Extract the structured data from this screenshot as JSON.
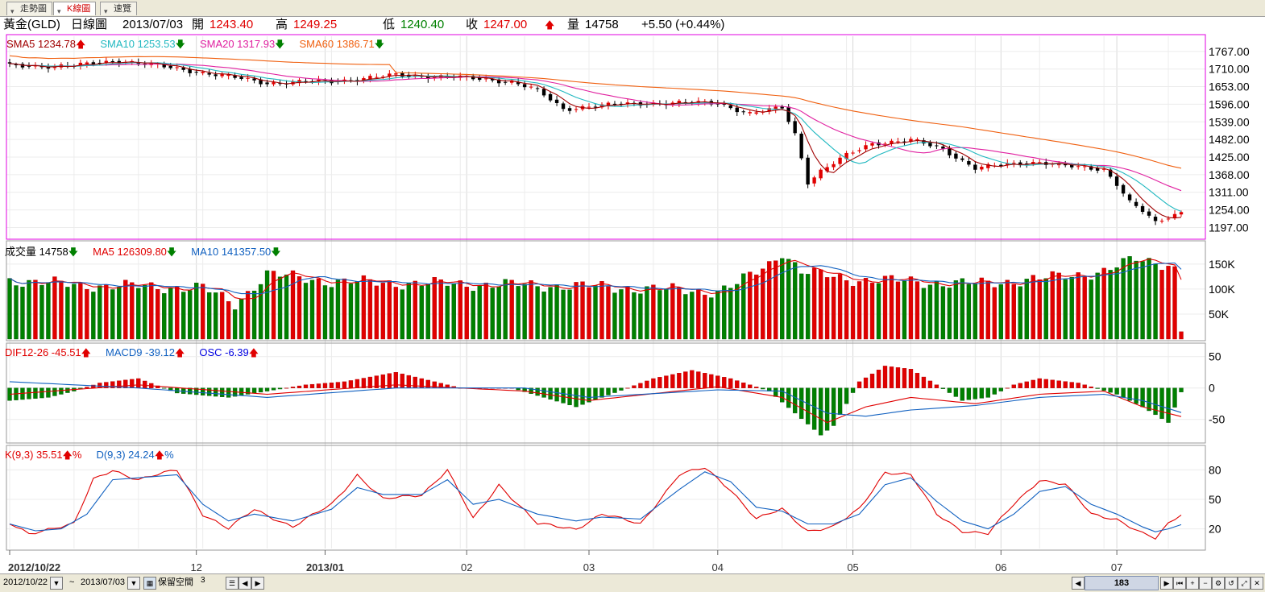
{
  "tabs": [
    {
      "label": "走勢圖",
      "active": false
    },
    {
      "label": "K線圖",
      "active": true
    },
    {
      "label": "速覽",
      "active": false
    }
  ],
  "header": {
    "symbol": "黃金(GLD)",
    "chart_kind": "日線圖",
    "date": "2013/07/03",
    "open_label": "開",
    "open": "1243.40",
    "high_label": "高",
    "high": "1249.25",
    "low_label": "低",
    "low": "1240.40",
    "close_label": "收",
    "close": "1247.00",
    "close_arrow": "🡅",
    "volume_label": "量",
    "volume": "14758",
    "change": "+5.50 (+0.44%)"
  },
  "legends": {
    "price": [
      {
        "text": "SMA5 1234.78",
        "arrow": "🡅",
        "color": "#a00000",
        "arrow_color": "#e00000"
      },
      {
        "text": "SMA10 1253.53",
        "arrow": "🡇",
        "color": "#20b8c0",
        "arrow_color": "#008000"
      },
      {
        "text": "SMA20 1317.93",
        "arrow": "🡇",
        "color": "#e020a0",
        "arrow_color": "#008000"
      },
      {
        "text": "SMA60 1386.71",
        "arrow": "🡇",
        "color": "#f06010",
        "arrow_color": "#008000"
      }
    ],
    "volume": [
      {
        "text": "成交量 14758",
        "arrow": "🡇",
        "color": "#000000",
        "arrow_color": "#008000"
      },
      {
        "text": "MA5 126309.80",
        "arrow": "🡇",
        "color": "#e00000",
        "arrow_color": "#008000"
      },
      {
        "text": "MA10 141357.50",
        "arrow": "🡇",
        "color": "#1060c0",
        "arrow_color": "#008000"
      }
    ],
    "macd": [
      {
        "text": "DIF12-26 -45.51",
        "arrow": "🡅",
        "color": "#e00000",
        "arrow_color": "#e00000"
      },
      {
        "text": "MACD9 -39.12",
        "arrow": "🡅",
        "color": "#1060c0",
        "arrow_color": "#e00000"
      },
      {
        "text": "OSC -6.39",
        "arrow": "🡅",
        "color": "#0000e0",
        "arrow_color": "#e00000"
      }
    ],
    "kd": [
      {
        "text": "K(9,3) 35.51",
        "arrow": "🡅",
        "suffix": "%",
        "color": "#e00000",
        "arrow_color": "#e00000"
      },
      {
        "text": "D(9,3) 24.24",
        "arrow": "🡅",
        "suffix": "%",
        "color": "#1060c0",
        "arrow_color": "#e00000"
      }
    ]
  },
  "colors": {
    "up": "#e00000",
    "down": "#008000",
    "price_frame": "#e000e0",
    "grid": "#d8d8d8",
    "candle_down": "#000000"
  },
  "chart_data": [
    {
      "type": "candlestick",
      "title": "黃金(GLD) 日線圖",
      "y_ticks": [
        "1767.00",
        "1710.00",
        "1653.00",
        "1596.00",
        "1539.00",
        "1482.00",
        "1425.00",
        "1368.00",
        "1311.00",
        "1254.00",
        "1197.00"
      ],
      "ylim": [
        1180,
        1790
      ],
      "x_labels": [
        "2012/10/22",
        "12",
        "2013/01",
        "02",
        "03",
        "04",
        "05",
        "06",
        "07"
      ],
      "x_label_index": [
        0,
        29,
        49,
        71,
        90,
        110,
        131,
        154,
        172
      ],
      "count": 183,
      "key_closes": [
        [
          0,
          1720
        ],
        [
          10,
          1720
        ],
        [
          17,
          1738
        ],
        [
          28,
          1705
        ],
        [
          40,
          1665
        ],
        [
          50,
          1670
        ],
        [
          60,
          1690
        ],
        [
          68,
          1685
        ],
        [
          78,
          1670
        ],
        [
          82,
          1640
        ],
        [
          86,
          1580
        ],
        [
          90,
          1590
        ],
        [
          100,
          1600
        ],
        [
          110,
          1600
        ],
        [
          115,
          1565
        ],
        [
          120,
          1585
        ],
        [
          122,
          1500
        ],
        [
          124,
          1345
        ],
        [
          126,
          1380
        ],
        [
          130,
          1430
        ],
        [
          134,
          1470
        ],
        [
          140,
          1480
        ],
        [
          145,
          1450
        ],
        [
          150,
          1390
        ],
        [
          155,
          1400
        ],
        [
          160,
          1410
        ],
        [
          166,
          1390
        ],
        [
          170,
          1385
        ],
        [
          172,
          1340
        ],
        [
          174,
          1280
        ],
        [
          176,
          1250
        ],
        [
          178,
          1210
        ],
        [
          180,
          1230
        ],
        [
          182,
          1247
        ]
      ],
      "sma_final": {
        "SMA5": 1234.78,
        "SMA10": 1253.53,
        "SMA20": 1317.93,
        "SMA60": 1386.71
      }
    },
    {
      "type": "bar",
      "title": "成交量",
      "y_ticks": [
        "150K",
        "100K",
        "50K"
      ],
      "ylim": [
        0,
        190000
      ],
      "key_values": [
        [
          0,
          118000
        ],
        [
          10,
          108000
        ],
        [
          20,
          105000
        ],
        [
          30,
          102000
        ],
        [
          35,
          70000
        ],
        [
          40,
          130000
        ],
        [
          50,
          115000
        ],
        [
          60,
          112000
        ],
        [
          70,
          110000
        ],
        [
          80,
          108000
        ],
        [
          90,
          105000
        ],
        [
          100,
          100000
        ],
        [
          110,
          95000
        ],
        [
          113,
          110000
        ],
        [
          118,
          150000
        ],
        [
          120,
          175000
        ],
        [
          123,
          135000
        ],
        [
          130,
          120000
        ],
        [
          140,
          115000
        ],
        [
          145,
          112000
        ],
        [
          150,
          110000
        ],
        [
          160,
          120000
        ],
        [
          170,
          135000
        ],
        [
          175,
          160000
        ],
        [
          180,
          150000
        ],
        [
          181,
          140000
        ],
        [
          182,
          14758
        ]
      ],
      "ma_final": {
        "MA5": 126309.8,
        "MA10": 141357.5
      }
    },
    {
      "type": "bar",
      "title": "MACD",
      "y_ticks": [
        "50",
        "0",
        "-50"
      ],
      "ylim": [
        -85,
        65
      ],
      "osc_key": [
        [
          0,
          -20
        ],
        [
          6,
          -15
        ],
        [
          10,
          -5
        ],
        [
          14,
          8
        ],
        [
          20,
          15
        ],
        [
          26,
          -8
        ],
        [
          34,
          -15
        ],
        [
          40,
          -5
        ],
        [
          46,
          5
        ],
        [
          52,
          10
        ],
        [
          60,
          25
        ],
        [
          64,
          15
        ],
        [
          70,
          0
        ],
        [
          78,
          0
        ],
        [
          82,
          -12
        ],
        [
          88,
          -30
        ],
        [
          92,
          -15
        ],
        [
          100,
          15
        ],
        [
          106,
          28
        ],
        [
          112,
          15
        ],
        [
          118,
          -5
        ],
        [
          122,
          -40
        ],
        [
          126,
          -75
        ],
        [
          128,
          -60
        ],
        [
          132,
          10
        ],
        [
          136,
          35
        ],
        [
          140,
          30
        ],
        [
          144,
          5
        ],
        [
          148,
          -20
        ],
        [
          152,
          -15
        ],
        [
          156,
          5
        ],
        [
          160,
          15
        ],
        [
          166,
          8
        ],
        [
          172,
          -10
        ],
        [
          176,
          -30
        ],
        [
          180,
          -55
        ],
        [
          182,
          -6.39
        ]
      ],
      "dif_key": [
        [
          0,
          -10
        ],
        [
          20,
          5
        ],
        [
          40,
          -10
        ],
        [
          60,
          5
        ],
        [
          80,
          -5
        ],
        [
          90,
          -20
        ],
        [
          110,
          2
        ],
        [
          120,
          -15
        ],
        [
          127,
          -55
        ],
        [
          133,
          -30
        ],
        [
          140,
          -15
        ],
        [
          150,
          -25
        ],
        [
          160,
          -10
        ],
        [
          170,
          -5
        ],
        [
          176,
          -30
        ],
        [
          182,
          -45.51
        ]
      ],
      "macd_key": [
        [
          0,
          10
        ],
        [
          20,
          0
        ],
        [
          40,
          -15
        ],
        [
          60,
          0
        ],
        [
          80,
          0
        ],
        [
          90,
          -15
        ],
        [
          110,
          -3
        ],
        [
          120,
          -5
        ],
        [
          127,
          -40
        ],
        [
          133,
          -45
        ],
        [
          140,
          -35
        ],
        [
          150,
          -28
        ],
        [
          160,
          -15
        ],
        [
          170,
          -10
        ],
        [
          176,
          -20
        ],
        [
          182,
          -39.12
        ]
      ]
    },
    {
      "type": "line",
      "title": "KD",
      "y_ticks": [
        "80",
        "50",
        "20"
      ],
      "ylim": [
        0,
        100
      ],
      "k_key": [
        [
          0,
          25
        ],
        [
          3,
          15
        ],
        [
          6,
          20
        ],
        [
          10,
          25
        ],
        [
          13,
          70
        ],
        [
          16,
          80
        ],
        [
          20,
          70
        ],
        [
          26,
          80
        ],
        [
          30,
          35
        ],
        [
          34,
          20
        ],
        [
          38,
          40
        ],
        [
          44,
          22
        ],
        [
          50,
          45
        ],
        [
          54,
          75
        ],
        [
          58,
          50
        ],
        [
          64,
          55
        ],
        [
          68,
          80
        ],
        [
          72,
          30
        ],
        [
          76,
          65
        ],
        [
          82,
          25
        ],
        [
          88,
          20
        ],
        [
          92,
          35
        ],
        [
          98,
          25
        ],
        [
          104,
          75
        ],
        [
          108,
          82
        ],
        [
          112,
          60
        ],
        [
          116,
          30
        ],
        [
          120,
          40
        ],
        [
          124,
          18
        ],
        [
          128,
          22
        ],
        [
          132,
          40
        ],
        [
          136,
          78
        ],
        [
          140,
          75
        ],
        [
          144,
          35
        ],
        [
          148,
          18
        ],
        [
          152,
          15
        ],
        [
          156,
          45
        ],
        [
          160,
          70
        ],
        [
          164,
          65
        ],
        [
          168,
          35
        ],
        [
          172,
          30
        ],
        [
          176,
          15
        ],
        [
          178,
          10
        ],
        [
          180,
          25
        ],
        [
          182,
          35.51
        ]
      ],
      "d_key": [
        [
          0,
          25
        ],
        [
          4,
          18
        ],
        [
          8,
          20
        ],
        [
          12,
          35
        ],
        [
          16,
          70
        ],
        [
          20,
          72
        ],
        [
          26,
          75
        ],
        [
          30,
          45
        ],
        [
          34,
          28
        ],
        [
          38,
          35
        ],
        [
          44,
          28
        ],
        [
          50,
          40
        ],
        [
          54,
          62
        ],
        [
          58,
          55
        ],
        [
          64,
          55
        ],
        [
          68,
          70
        ],
        [
          72,
          45
        ],
        [
          76,
          50
        ],
        [
          82,
          35
        ],
        [
          88,
          28
        ],
        [
          92,
          32
        ],
        [
          98,
          30
        ],
        [
          104,
          60
        ],
        [
          108,
          78
        ],
        [
          112,
          68
        ],
        [
          116,
          42
        ],
        [
          120,
          38
        ],
        [
          124,
          25
        ],
        [
          128,
          25
        ],
        [
          132,
          35
        ],
        [
          136,
          65
        ],
        [
          140,
          72
        ],
        [
          144,
          48
        ],
        [
          148,
          28
        ],
        [
          152,
          20
        ],
        [
          156,
          35
        ],
        [
          160,
          58
        ],
        [
          164,
          63
        ],
        [
          168,
          45
        ],
        [
          172,
          35
        ],
        [
          176,
          22
        ],
        [
          178,
          17
        ],
        [
          180,
          20
        ],
        [
          182,
          24.24
        ]
      ]
    }
  ],
  "bottom": {
    "start_date": "2012/10/22",
    "tilde": "~",
    "end_date": "2013/07/03",
    "reserve_label": "保留空間",
    "reserve_value": "3",
    "count": "183"
  }
}
